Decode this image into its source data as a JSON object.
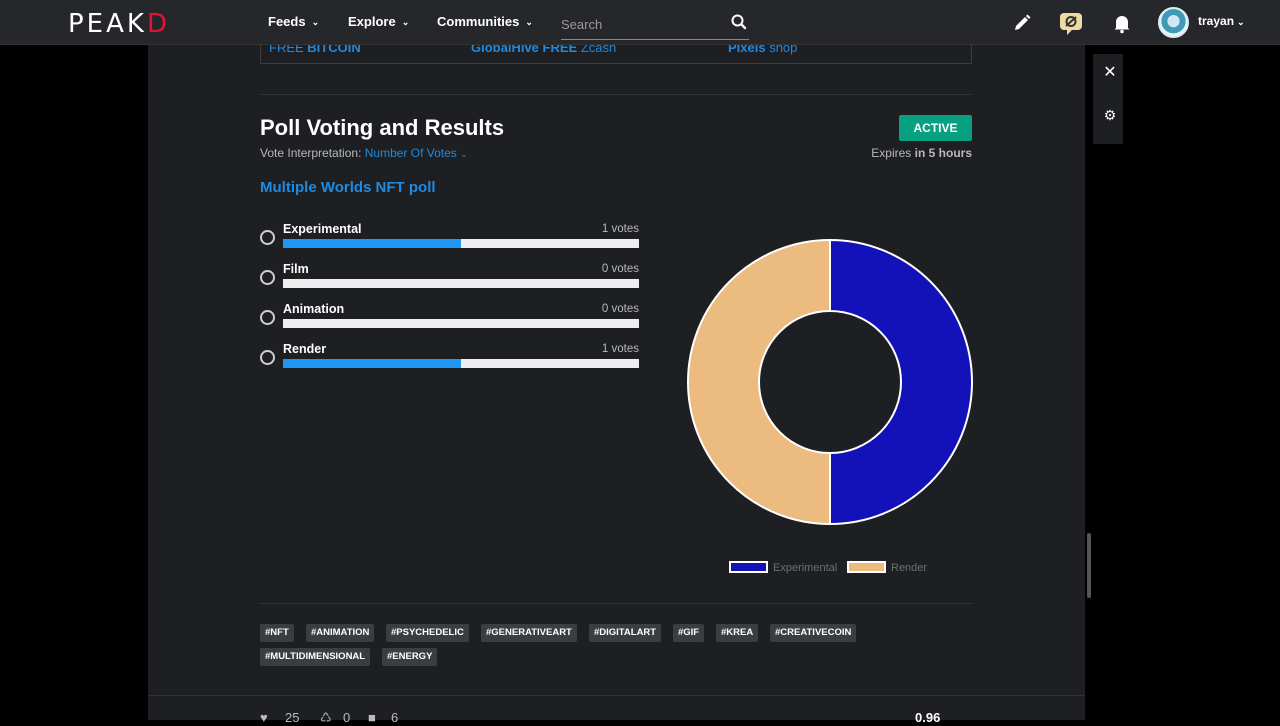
{
  "nav": {
    "logo_main": "PEAK",
    "logo_accent": "D",
    "feeds": "Feeds",
    "explore": "Explore",
    "communities": "Communities",
    "search_placeholder": "Search",
    "username": "trayan"
  },
  "ads": [
    {
      "prefix": "FREE ",
      "bold": "BITCOIN",
      "suffix": ""
    },
    {
      "prefix": "",
      "bold": "GlobalHive FREE",
      "suffix": " Zcash"
    },
    {
      "prefix": "",
      "bold": "Pixels",
      "suffix": " shop"
    }
  ],
  "poll": {
    "title": "Poll Voting and Results",
    "status": "ACTIVE",
    "interp_label": "Vote Interpretation: ",
    "interp_value": "Number Of Votes",
    "expires_prefix": "Expires ",
    "expires_bold": "in 5 hours",
    "question": "Multiple Worlds NFT poll",
    "options": [
      {
        "label": "Experimental",
        "votes": "1 votes",
        "fraction": 0.5
      },
      {
        "label": "Film",
        "votes": "0 votes",
        "fraction": 0
      },
      {
        "label": "Animation",
        "votes": "0 votes",
        "fraction": 0
      },
      {
        "label": "Render",
        "votes": "1 votes",
        "fraction": 0.5
      }
    ]
  },
  "chart_data": {
    "type": "pie",
    "variant": "doughnut",
    "categories": [
      "Experimental",
      "Render"
    ],
    "values": [
      1,
      1
    ],
    "colors": [
      "#1212b8",
      "#ecbb7f"
    ],
    "legend_position": "bottom"
  },
  "tags": [
    "#NFT",
    "#ANIMATION",
    "#PSYCHEDELIC",
    "#GENERATIVEART",
    "#DIGITALART",
    "#GIF",
    "#KREA",
    "#CREATIVECOIN",
    "#MULTIDIMENSIONAL",
    "#ENERGY"
  ],
  "footer": {
    "likes": "25",
    "reblogs": "0",
    "comments": "6",
    "payout": "0.96"
  },
  "icons": {
    "search": "search-icon",
    "pencil": "pencil-icon",
    "chat": "chat-icon",
    "bell": "bell-icon",
    "close": "close-icon",
    "gear": "gear-icon"
  }
}
